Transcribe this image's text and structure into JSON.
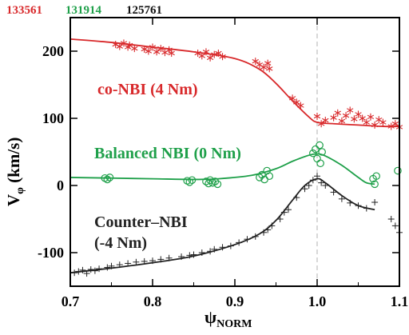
{
  "shot_labels": [
    {
      "text": "133561",
      "color": "#d8282a"
    },
    {
      "text": "131914",
      "color": "#1fa04a"
    },
    {
      "text": "125761",
      "color": "#111111"
    }
  ],
  "chart_data": {
    "type": "scatter",
    "title": "",
    "xlabel_main": "ψ",
    "xlabel_sub": "NORM",
    "ylabel_main": "V",
    "ylabel_sub": "φ",
    "ylabel_unit": " (km/s)",
    "xlim": [
      0.7,
      1.1
    ],
    "ylim": [
      -150,
      250
    ],
    "xticks": [
      0.7,
      0.8,
      0.9,
      1.0,
      1.1
    ],
    "xtick_labels": [
      "0.7",
      "0.8",
      "0.9",
      "1.0",
      "1.1"
    ],
    "yticks": [
      -100,
      0,
      100,
      200
    ],
    "ytick_labels": [
      "-100",
      "0",
      "100",
      "200"
    ],
    "vline_x": 1.0,
    "series": [
      {
        "shot": "133561",
        "label": "co-NBI (4 Nm)",
        "color": "#d8282a",
        "marker": "asterisk",
        "points": [
          [
            0.755,
            210
          ],
          [
            0.76,
            207
          ],
          [
            0.765,
            212
          ],
          [
            0.77,
            206
          ],
          [
            0.772,
            209
          ],
          [
            0.778,
            204
          ],
          [
            0.79,
            203
          ],
          [
            0.795,
            200
          ],
          [
            0.8,
            206
          ],
          [
            0.805,
            199
          ],
          [
            0.81,
            204
          ],
          [
            0.815,
            198
          ],
          [
            0.82,
            202
          ],
          [
            0.823,
            197
          ],
          [
            0.855,
            197
          ],
          [
            0.86,
            193
          ],
          [
            0.865,
            199
          ],
          [
            0.87,
            190
          ],
          [
            0.875,
            195
          ],
          [
            0.88,
            197
          ],
          [
            0.885,
            192
          ],
          [
            0.925,
            185
          ],
          [
            0.93,
            180
          ],
          [
            0.935,
            176
          ],
          [
            0.94,
            182
          ],
          [
            0.942,
            174
          ],
          [
            0.97,
            130
          ],
          [
            0.975,
            124
          ],
          [
            0.98,
            119
          ],
          [
            1.0,
            103
          ],
          [
            1.005,
            92
          ],
          [
            1.01,
            97
          ],
          [
            1.02,
            101
          ],
          [
            1.025,
            108
          ],
          [
            1.03,
            96
          ],
          [
            1.035,
            104
          ],
          [
            1.04,
            112
          ],
          [
            1.045,
            99
          ],
          [
            1.05,
            106
          ],
          [
            1.055,
            100
          ],
          [
            1.06,
            94
          ],
          [
            1.065,
            102
          ],
          [
            1.07,
            90
          ],
          [
            1.075,
            98
          ],
          [
            1.08,
            94
          ],
          [
            1.09,
            88
          ],
          [
            1.095,
            92
          ],
          [
            1.1,
            87
          ]
        ],
        "fit": [
          [
            0.7,
            218
          ],
          [
            0.75,
            213
          ],
          [
            0.8,
            206
          ],
          [
            0.85,
            199
          ],
          [
            0.9,
            189
          ],
          [
            0.93,
            173
          ],
          [
            0.95,
            152
          ],
          [
            0.97,
            126
          ],
          [
            0.99,
            102
          ],
          [
            1.0,
            94
          ],
          [
            1.02,
            92
          ],
          [
            1.05,
            90
          ],
          [
            1.08,
            88
          ],
          [
            1.1,
            88
          ]
        ]
      },
      {
        "shot": "131914",
        "label": "Balanced NBI (0 Nm)",
        "color": "#1fa04a",
        "marker": "circle",
        "points": [
          [
            0.742,
            11
          ],
          [
            0.745,
            9
          ],
          [
            0.748,
            12
          ],
          [
            0.842,
            7
          ],
          [
            0.845,
            5
          ],
          [
            0.848,
            8
          ],
          [
            0.865,
            6
          ],
          [
            0.868,
            3
          ],
          [
            0.87,
            8
          ],
          [
            0.873,
            4
          ],
          [
            0.876,
            6
          ],
          [
            0.879,
            2
          ],
          [
            0.93,
            12
          ],
          [
            0.933,
            16
          ],
          [
            0.936,
            9
          ],
          [
            0.939,
            22
          ],
          [
            0.942,
            14
          ],
          [
            0.995,
            48
          ],
          [
            0.998,
            54
          ],
          [
            1.0,
            40
          ],
          [
            1.003,
            60
          ],
          [
            1.006,
            50
          ],
          [
            1.004,
            33
          ],
          [
            1.068,
            10
          ],
          [
            1.07,
            2
          ],
          [
            1.072,
            14
          ],
          [
            1.098,
            22
          ]
        ],
        "fit": [
          [
            0.7,
            12
          ],
          [
            0.75,
            11
          ],
          [
            0.8,
            10
          ],
          [
            0.85,
            9
          ],
          [
            0.88,
            10
          ],
          [
            0.92,
            15
          ],
          [
            0.95,
            25
          ],
          [
            0.97,
            36
          ],
          [
            0.99,
            45
          ],
          [
            1.0,
            47
          ],
          [
            1.01,
            44
          ],
          [
            1.03,
            30
          ],
          [
            1.05,
            12
          ],
          [
            1.06,
            4
          ],
          [
            1.07,
            2
          ]
        ]
      },
      {
        "shot": "125761",
        "label": "Counter–NBI",
        "label2": "(-4 Nm)",
        "color": "#222222",
        "marker": "plus",
        "points": [
          [
            0.705,
            -130
          ],
          [
            0.71,
            -128
          ],
          [
            0.715,
            -126
          ],
          [
            0.72,
            -131
          ],
          [
            0.725,
            -125
          ],
          [
            0.73,
            -127
          ],
          [
            0.735,
            -124
          ],
          [
            0.745,
            -122
          ],
          [
            0.75,
            -120
          ],
          [
            0.76,
            -118
          ],
          [
            0.77,
            -116
          ],
          [
            0.78,
            -114
          ],
          [
            0.79,
            -113
          ],
          [
            0.8,
            -112
          ],
          [
            0.81,
            -110
          ],
          [
            0.82,
            -108
          ],
          [
            0.835,
            -106
          ],
          [
            0.845,
            -104
          ],
          [
            0.85,
            -103
          ],
          [
            0.86,
            -100
          ],
          [
            0.87,
            -98
          ],
          [
            0.875,
            -95
          ],
          [
            0.885,
            -92
          ],
          [
            0.895,
            -90
          ],
          [
            0.905,
            -85
          ],
          [
            0.915,
            -80
          ],
          [
            0.925,
            -76
          ],
          [
            0.935,
            -70
          ],
          [
            0.94,
            -66
          ],
          [
            0.945,
            -60
          ],
          [
            0.955,
            -50
          ],
          [
            0.96,
            -40
          ],
          [
            0.965,
            -36
          ],
          [
            0.975,
            -18
          ],
          [
            0.985,
            -5
          ],
          [
            0.99,
            0
          ],
          [
            0.995,
            8
          ],
          [
            1.0,
            14
          ],
          [
            1.005,
            4
          ],
          [
            1.01,
            0
          ],
          [
            1.02,
            -10
          ],
          [
            1.03,
            -20
          ],
          [
            1.04,
            -26
          ],
          [
            1.05,
            -30
          ],
          [
            1.06,
            -34
          ],
          [
            1.07,
            -25
          ],
          [
            1.09,
            -50
          ],
          [
            1.095,
            -60
          ],
          [
            1.1,
            -70
          ]
        ],
        "fit": [
          [
            0.7,
            -130
          ],
          [
            0.75,
            -123
          ],
          [
            0.8,
            -115
          ],
          [
            0.85,
            -105
          ],
          [
            0.9,
            -88
          ],
          [
            0.93,
            -72
          ],
          [
            0.95,
            -52
          ],
          [
            0.97,
            -22
          ],
          [
            0.985,
            0
          ],
          [
            1.0,
            10
          ],
          [
            1.01,
            4
          ],
          [
            1.03,
            -15
          ],
          [
            1.05,
            -30
          ],
          [
            1.07,
            -36
          ]
        ]
      }
    ]
  }
}
